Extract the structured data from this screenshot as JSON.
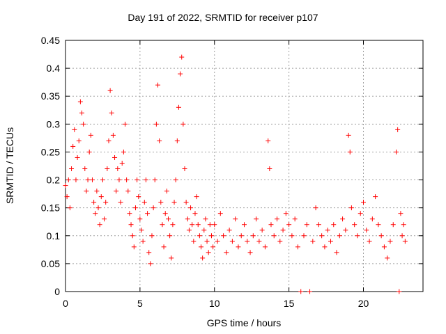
{
  "chart_data": {
    "type": "scatter",
    "title": "Day 191 of 2022, SRMTID for receiver p107",
    "xlabel": "GPS time / hours",
    "ylabel": "SRMTID / TECUs",
    "xlim": [
      0,
      24
    ],
    "ylim": [
      0,
      0.45
    ],
    "xticks": [
      0,
      5,
      10,
      15,
      20
    ],
    "yticks": [
      0,
      0.05,
      0.1,
      0.15,
      0.2,
      0.25,
      0.3,
      0.35,
      0.4,
      0.45
    ],
    "ytick_labels": [
      "0",
      "0.05",
      "0.1",
      "0.15",
      "0.2",
      "0.25",
      "0.3",
      "0.35",
      "0.4",
      "0.45"
    ],
    "xtick_labels": [
      "0",
      "5",
      "10",
      "15",
      "20"
    ],
    "grid": true,
    "marker": "+",
    "color": "#ff0000",
    "series": [
      {
        "name": "SRMTID",
        "points": [
          [
            0.0,
            0.19
          ],
          [
            0.1,
            0.17
          ],
          [
            0.2,
            0.2
          ],
          [
            0.3,
            0.15
          ],
          [
            0.4,
            0.22
          ],
          [
            0.5,
            0.26
          ],
          [
            0.6,
            0.29
          ],
          [
            0.7,
            0.2
          ],
          [
            0.8,
            0.24
          ],
          [
            0.9,
            0.27
          ],
          [
            1.0,
            0.34
          ],
          [
            1.1,
            0.32
          ],
          [
            1.2,
            0.3
          ],
          [
            1.3,
            0.22
          ],
          [
            1.4,
            0.18
          ],
          [
            1.5,
            0.2
          ],
          [
            1.6,
            0.25
          ],
          [
            1.7,
            0.28
          ],
          [
            1.8,
            0.2
          ],
          [
            1.9,
            0.16
          ],
          [
            2.0,
            0.14
          ],
          [
            2.1,
            0.18
          ],
          [
            2.2,
            0.15
          ],
          [
            2.3,
            0.12
          ],
          [
            2.4,
            0.17
          ],
          [
            2.5,
            0.2
          ],
          [
            2.6,
            0.13
          ],
          [
            2.7,
            0.16
          ],
          [
            2.8,
            0.22
          ],
          [
            2.9,
            0.27
          ],
          [
            3.0,
            0.36
          ],
          [
            3.1,
            0.32
          ],
          [
            3.2,
            0.28
          ],
          [
            3.3,
            0.24
          ],
          [
            3.4,
            0.18
          ],
          [
            3.5,
            0.22
          ],
          [
            3.6,
            0.2
          ],
          [
            3.7,
            0.16
          ],
          [
            3.8,
            0.23
          ],
          [
            3.9,
            0.25
          ],
          [
            4.0,
            0.3
          ],
          [
            4.1,
            0.2
          ],
          [
            4.2,
            0.18
          ],
          [
            4.3,
            0.14
          ],
          [
            4.4,
            0.12
          ],
          [
            4.5,
            0.1
          ],
          [
            4.6,
            0.08
          ],
          [
            4.7,
            0.15
          ],
          [
            4.8,
            0.2
          ],
          [
            4.9,
            0.17
          ],
          [
            5.0,
            0.13
          ],
          [
            5.1,
            0.11
          ],
          [
            5.2,
            0.09
          ],
          [
            5.3,
            0.16
          ],
          [
            5.4,
            0.2
          ],
          [
            5.5,
            0.14
          ],
          [
            5.6,
            0.07
          ],
          [
            5.7,
            0.05
          ],
          [
            5.8,
            0.1
          ],
          [
            5.9,
            0.15
          ],
          [
            6.0,
            0.2
          ],
          [
            6.1,
            0.3
          ],
          [
            6.2,
            0.37
          ],
          [
            6.3,
            0.27
          ],
          [
            6.4,
            0.16
          ],
          [
            6.5,
            0.12
          ],
          [
            6.6,
            0.08
          ],
          [
            6.7,
            0.14
          ],
          [
            6.8,
            0.18
          ],
          [
            6.9,
            0.13
          ],
          [
            7.0,
            0.1
          ],
          [
            7.1,
            0.06
          ],
          [
            7.2,
            0.12
          ],
          [
            7.3,
            0.16
          ],
          [
            7.4,
            0.2
          ],
          [
            7.5,
            0.27
          ],
          [
            7.6,
            0.33
          ],
          [
            7.7,
            0.39
          ],
          [
            7.8,
            0.42
          ],
          [
            7.9,
            0.3
          ],
          [
            8.0,
            0.22
          ],
          [
            8.1,
            0.16
          ],
          [
            8.2,
            0.13
          ],
          [
            8.3,
            0.11
          ],
          [
            8.4,
            0.15
          ],
          [
            8.5,
            0.12
          ],
          [
            8.6,
            0.09
          ],
          [
            8.7,
            0.14
          ],
          [
            8.8,
            0.17
          ],
          [
            8.9,
            0.12
          ],
          [
            9.0,
            0.1
          ],
          [
            9.1,
            0.08
          ],
          [
            9.2,
            0.06
          ],
          [
            9.3,
            0.11
          ],
          [
            9.4,
            0.13
          ],
          [
            9.5,
            0.09
          ],
          [
            9.6,
            0.07
          ],
          [
            9.7,
            0.12
          ],
          [
            9.8,
            0.1
          ],
          [
            9.9,
            0.08
          ],
          [
            10.0,
            0.12
          ],
          [
            10.2,
            0.09
          ],
          [
            10.4,
            0.14
          ],
          [
            10.6,
            0.1
          ],
          [
            10.8,
            0.07
          ],
          [
            11.0,
            0.11
          ],
          [
            11.2,
            0.09
          ],
          [
            11.4,
            0.13
          ],
          [
            11.6,
            0.08
          ],
          [
            11.8,
            0.1
          ],
          [
            12.0,
            0.12
          ],
          [
            12.2,
            0.09
          ],
          [
            12.4,
            0.07
          ],
          [
            12.6,
            0.1
          ],
          [
            12.8,
            0.13
          ],
          [
            13.0,
            0.09
          ],
          [
            13.2,
            0.11
          ],
          [
            13.4,
            0.08
          ],
          [
            13.6,
            0.27
          ],
          [
            13.7,
            0.22
          ],
          [
            13.8,
            0.12
          ],
          [
            14.0,
            0.1
          ],
          [
            14.2,
            0.13
          ],
          [
            14.4,
            0.09
          ],
          [
            14.6,
            0.11
          ],
          [
            14.8,
            0.14
          ],
          [
            15.0,
            0.12
          ],
          [
            15.2,
            0.1
          ],
          [
            15.4,
            0.13
          ],
          [
            15.6,
            0.08
          ],
          [
            15.8,
            0.0
          ],
          [
            16.0,
            0.1
          ],
          [
            16.2,
            0.12
          ],
          [
            16.4,
            0.0
          ],
          [
            16.6,
            0.09
          ],
          [
            16.8,
            0.15
          ],
          [
            17.0,
            0.12
          ],
          [
            17.2,
            0.1
          ],
          [
            17.4,
            0.08
          ],
          [
            17.6,
            0.11
          ],
          [
            17.8,
            0.09
          ],
          [
            18.0,
            0.12
          ],
          [
            18.2,
            0.07
          ],
          [
            18.4,
            0.1
          ],
          [
            18.6,
            0.13
          ],
          [
            18.8,
            0.11
          ],
          [
            19.0,
            0.28
          ],
          [
            19.1,
            0.25
          ],
          [
            19.2,
            0.15
          ],
          [
            19.4,
            0.12
          ],
          [
            19.6,
            0.1
          ],
          [
            19.8,
            0.14
          ],
          [
            20.0,
            0.16
          ],
          [
            20.2,
            0.11
          ],
          [
            20.4,
            0.09
          ],
          [
            20.6,
            0.13
          ],
          [
            20.8,
            0.17
          ],
          [
            21.0,
            0.12
          ],
          [
            21.2,
            0.1
          ],
          [
            21.4,
            0.08
          ],
          [
            21.6,
            0.06
          ],
          [
            21.8,
            0.09
          ],
          [
            22.0,
            0.12
          ],
          [
            22.2,
            0.25
          ],
          [
            22.3,
            0.29
          ],
          [
            22.4,
            0.0
          ],
          [
            22.5,
            0.14
          ],
          [
            22.6,
            0.1
          ],
          [
            22.7,
            0.12
          ],
          [
            22.8,
            0.09
          ]
        ]
      }
    ]
  }
}
